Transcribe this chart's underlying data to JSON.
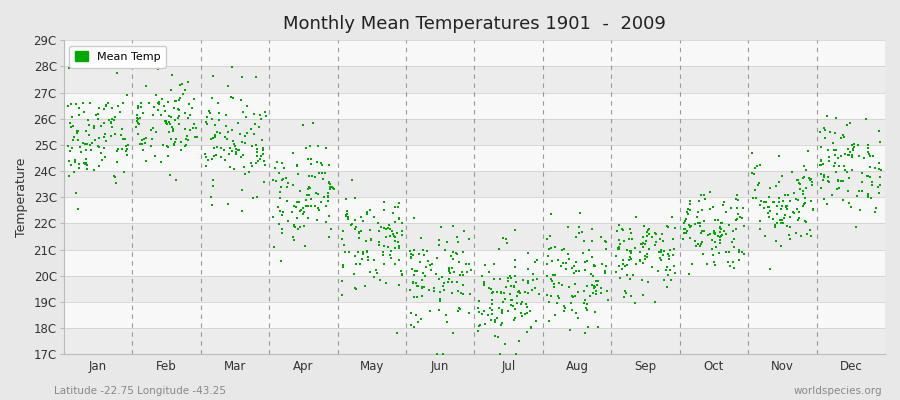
{
  "title": "Monthly Mean Temperatures 1901  -  2009",
  "ylabel": "Temperature",
  "xlabel_bottom_left": "Latitude -22.75 Longitude -43.25",
  "xlabel_bottom_right": "worldspecies.org",
  "legend_label": "Mean Temp",
  "dot_color": "#00aa00",
  "bg_color": "#e8e8e8",
  "band_color_light": "#ececec",
  "band_color_white": "#f8f8f8",
  "ylim": [
    17,
    29
  ],
  "ytick_labels": [
    "17C",
    "18C",
    "19C",
    "20C",
    "21C",
    "22C",
    "23C",
    "24C",
    "25C",
    "26C",
    "27C",
    "28C",
    "29C"
  ],
  "ytick_values": [
    17,
    18,
    19,
    20,
    21,
    22,
    23,
    24,
    25,
    26,
    27,
    28,
    29
  ],
  "months": [
    "Jan",
    "Feb",
    "Mar",
    "Apr",
    "May",
    "Jun",
    "Jul",
    "Aug",
    "Sep",
    "Oct",
    "Nov",
    "Dec"
  ],
  "n_years": 109,
  "seed": 42,
  "monthly_means": [
    25.2,
    25.8,
    25.2,
    23.2,
    21.3,
    19.8,
    19.3,
    19.8,
    20.8,
    21.8,
    22.8,
    24.2
  ],
  "monthly_stds": [
    1.0,
    1.0,
    1.0,
    1.0,
    1.0,
    1.0,
    1.0,
    1.0,
    0.8,
    0.8,
    0.9,
    0.9
  ]
}
